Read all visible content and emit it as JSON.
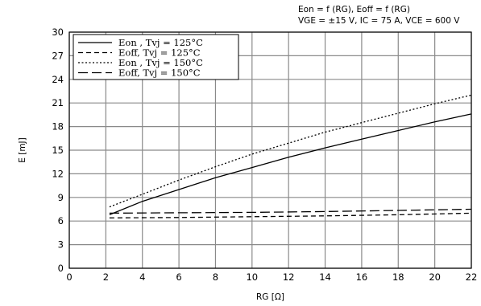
{
  "header": {
    "line1": "Eon = f (RG), Eoff = f (RG)",
    "line2": "VGE = ±15 V, IC = 75 A, VCE = 600 V"
  },
  "chart_data": {
    "type": "line",
    "xlabel": "RG [Ω]",
    "ylabel": "E [mJ]",
    "xlim": [
      0,
      22
    ],
    "ylim": [
      0,
      30
    ],
    "xticks": [
      "0",
      "2",
      "4",
      "6",
      "8",
      "10",
      "12",
      "14",
      "16",
      "18",
      "20",
      "22"
    ],
    "yticks": [
      "0",
      "3",
      "6",
      "9",
      "12",
      "15",
      "18",
      "21",
      "24",
      "27",
      "30"
    ],
    "grid": true,
    "legend_position": "top-left",
    "series": [
      {
        "name": "Eon , Tvj = 125°C",
        "dash": "solid",
        "x": [
          2.2,
          4,
          6,
          8,
          10,
          12,
          14,
          16,
          18,
          20,
          22
        ],
        "y": [
          6.8,
          8.5,
          10.0,
          11.5,
          12.8,
          14.1,
          15.3,
          16.4,
          17.5,
          18.6,
          19.6
        ]
      },
      {
        "name": "Eoff, Tvj = 125°C",
        "dash": "short-dash",
        "x": [
          2.2,
          6,
          10,
          14,
          18,
          22
        ],
        "y": [
          6.4,
          6.45,
          6.55,
          6.65,
          6.8,
          7.0
        ]
      },
      {
        "name": "Eon , Tvj = 150°C",
        "dash": "dotted",
        "x": [
          2.2,
          4,
          6,
          8,
          10,
          12,
          14,
          16,
          18,
          20,
          22
        ],
        "y": [
          7.8,
          9.4,
          11.2,
          12.9,
          14.5,
          15.9,
          17.3,
          18.5,
          19.7,
          20.9,
          22.0
        ]
      },
      {
        "name": "Eoff, Tvj = 150°C",
        "dash": "long-dash",
        "x": [
          2.2,
          6,
          10,
          14,
          18,
          22
        ],
        "y": [
          7.0,
          7.05,
          7.1,
          7.2,
          7.35,
          7.5
        ]
      }
    ]
  }
}
